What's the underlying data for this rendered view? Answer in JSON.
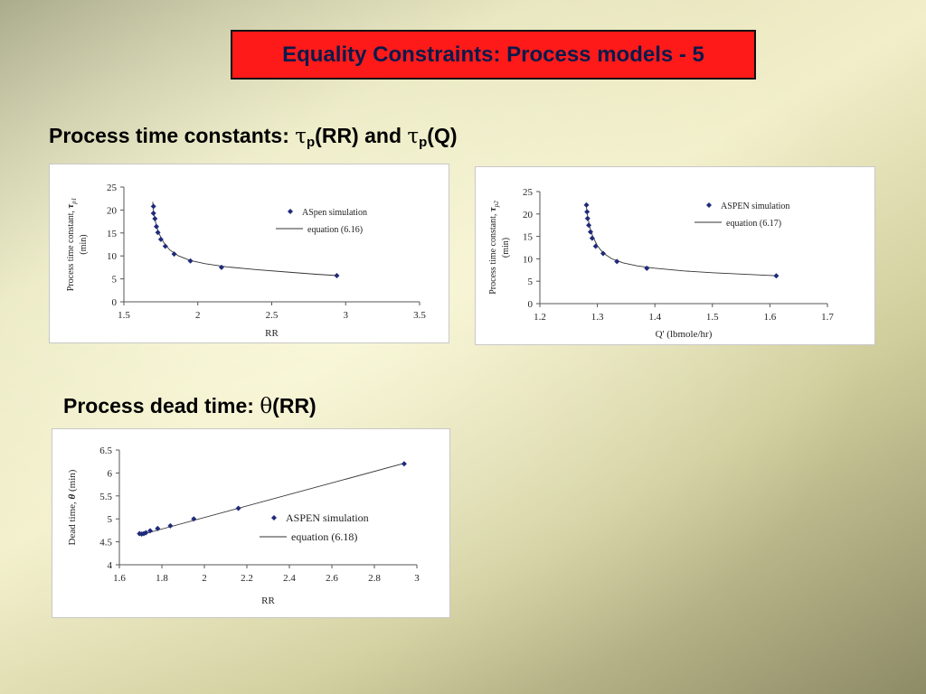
{
  "slide_title": "Equality Constraints: Process models - 5",
  "heading1": {
    "text": "Process time constants: ",
    "tau": "τ",
    "p": "p",
    "rr": "(RR) and ",
    "q": "(Q)"
  },
  "heading2": {
    "text": "Process dead time: ",
    "theta": "θ",
    "rr": "(RR)"
  },
  "colors": {
    "marker": "#1f2a7a",
    "line": "#333333",
    "title_bg": "#ff1a1a",
    "title_text": "#0b1a4a"
  },
  "chart_data": [
    {
      "type": "scatter",
      "xlabel": "RR",
      "ylabel_line1": "Process time constant,",
      "ylabel_symbol": "τ",
      "ylabel_sub": "p1",
      "ylabel_line2": "(min)",
      "xlim": [
        1.5,
        3.5
      ],
      "ylim": [
        0,
        25
      ],
      "xticks": [
        "1.5",
        "2",
        "2.5",
        "3",
        "3.5"
      ],
      "yticks": [
        "0",
        "5",
        "10",
        "15",
        "20",
        "25"
      ],
      "legend": {
        "markers_label": "ASpen simulation",
        "line_label": "equation (6.16)",
        "position": "top-right"
      },
      "points": [
        [
          1.7,
          20.8
        ],
        [
          1.7,
          19.3
        ],
        [
          1.71,
          18.1
        ],
        [
          1.72,
          16.4
        ],
        [
          1.73,
          15.1
        ],
        [
          1.75,
          13.6
        ],
        [
          1.78,
          12.1
        ],
        [
          1.84,
          10.4
        ],
        [
          1.95,
          8.9
        ],
        [
          2.16,
          7.5
        ],
        [
          2.94,
          5.7
        ]
      ],
      "line": [
        [
          1.695,
          21.8
        ],
        [
          1.7,
          19.8
        ],
        [
          1.71,
          18.0
        ],
        [
          1.72,
          16.5
        ],
        [
          1.74,
          14.7
        ],
        [
          1.77,
          12.9
        ],
        [
          1.81,
          11.3
        ],
        [
          1.87,
          10.0
        ],
        [
          1.95,
          9.0
        ],
        [
          2.05,
          8.3
        ],
        [
          2.2,
          7.6
        ],
        [
          2.4,
          7.0
        ],
        [
          2.6,
          6.5
        ],
        [
          2.8,
          6.0
        ],
        [
          2.95,
          5.7
        ]
      ]
    },
    {
      "type": "scatter",
      "xlabel": "Q' (lbmole/hr)",
      "ylabel_line1": "Process time constant,",
      "ylabel_symbol": "τ",
      "ylabel_sub": "p2",
      "ylabel_line2": "(min)",
      "xlim": [
        1.2,
        1.7
      ],
      "ylim": [
        0,
        25
      ],
      "xticks": [
        "1.2",
        "1.3",
        "1.4",
        "1.5",
        "1.6",
        "1.7"
      ],
      "yticks": [
        "0",
        "5",
        "10",
        "15",
        "20",
        "25"
      ],
      "legend": {
        "markers_label": "ASPEN simulation",
        "line_label": "equation (6.17)",
        "position": "top-right"
      },
      "points": [
        [
          1.281,
          22.0
        ],
        [
          1.282,
          20.5
        ],
        [
          1.283,
          19.0
        ],
        [
          1.285,
          17.5
        ],
        [
          1.288,
          16.0
        ],
        [
          1.291,
          14.6
        ],
        [
          1.297,
          12.8
        ],
        [
          1.31,
          11.2
        ],
        [
          1.334,
          9.4
        ],
        [
          1.386,
          7.9
        ],
        [
          1.611,
          6.2
        ]
      ],
      "line": [
        [
          1.28,
          22.5
        ],
        [
          1.283,
          19.5
        ],
        [
          1.287,
          17.0
        ],
        [
          1.292,
          15.0
        ],
        [
          1.3,
          12.9
        ],
        [
          1.31,
          11.3
        ],
        [
          1.325,
          10.0
        ],
        [
          1.345,
          9.1
        ],
        [
          1.37,
          8.4
        ],
        [
          1.4,
          7.9
        ],
        [
          1.45,
          7.3
        ],
        [
          1.5,
          6.9
        ],
        [
          1.55,
          6.6
        ],
        [
          1.612,
          6.2
        ]
      ]
    },
    {
      "type": "scatter",
      "xlabel": "RR",
      "ylabel_line1": "Dead time,",
      "ylabel_symbol": "θ",
      "ylabel_sub": "",
      "ylabel_line2": "(min)",
      "xlim": [
        1.6,
        3.0
      ],
      "ylim": [
        4,
        6.5
      ],
      "xticks": [
        "1.6",
        "1.8",
        "2",
        "2.2",
        "2.4",
        "2.6",
        "2.8",
        "3"
      ],
      "yticks": [
        "4",
        "4.5",
        "5",
        "5.5",
        "6",
        "6.5"
      ],
      "legend": {
        "markers_label": "ASPEN simulation",
        "line_label": "equation (6.18)",
        "position": "right"
      },
      "points": [
        [
          1.695,
          4.68
        ],
        [
          1.705,
          4.67
        ],
        [
          1.715,
          4.68
        ],
        [
          1.725,
          4.7
        ],
        [
          1.745,
          4.74
        ],
        [
          1.78,
          4.79
        ],
        [
          1.84,
          4.85
        ],
        [
          1.95,
          5.0
        ],
        [
          2.16,
          5.23
        ],
        [
          2.94,
          6.2
        ]
      ],
      "line": [
        [
          1.69,
          4.64
        ],
        [
          2.94,
          6.21
        ]
      ]
    }
  ]
}
